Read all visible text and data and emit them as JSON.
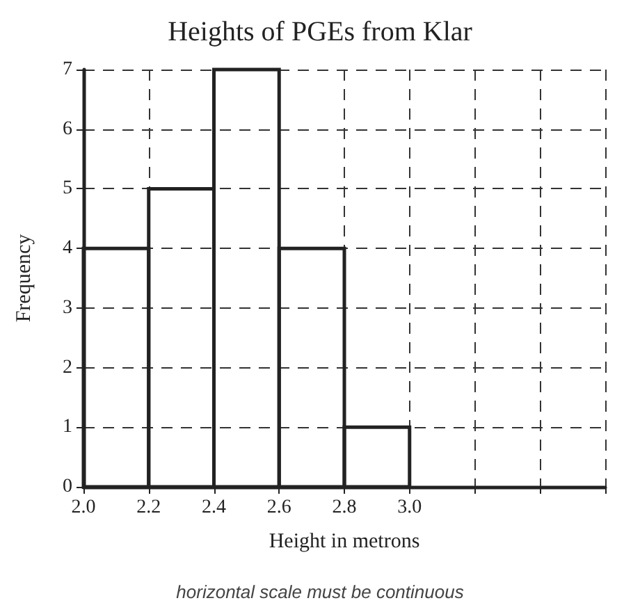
{
  "chart_data": {
    "type": "histogram",
    "title": "Heights of PGEs from Klar",
    "xlabel": "Height in metrons",
    "ylabel": "Frequency",
    "annotations": [
      "horizontal scale must be continuous"
    ],
    "bins": [
      2.0,
      2.2,
      2.4,
      2.6,
      2.8,
      3.0
    ],
    "values": [
      4,
      5,
      7,
      4,
      1
    ],
    "color": "#222222",
    "xlim": [
      2.0,
      3.6
    ],
    "xticks": [
      {
        "value": 2.0,
        "label": "2.0"
      },
      {
        "value": 2.2,
        "label": "2.2"
      },
      {
        "value": 2.4,
        "label": "2.4"
      },
      {
        "value": 2.6,
        "label": "2.6"
      },
      {
        "value": 2.8,
        "label": "2.8"
      },
      {
        "value": 3.0,
        "label": "3.0"
      },
      {
        "value": 3.2,
        "label": null
      },
      {
        "value": 3.4,
        "label": null
      },
      {
        "value": 3.6,
        "label": null
      }
    ],
    "ylim": [
      0,
      7
    ],
    "yticks": [
      0,
      1,
      2,
      3,
      4,
      5,
      6,
      7
    ],
    "grid": true
  }
}
